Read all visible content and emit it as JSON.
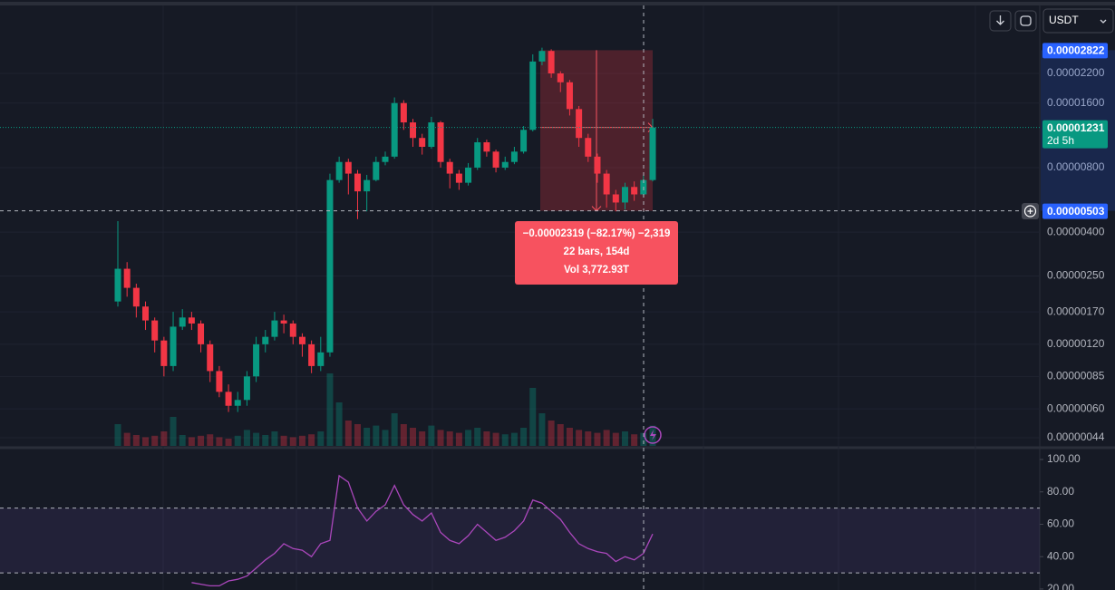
{
  "chart_data": {
    "type": "candlestick",
    "currency": "USDT",
    "log_scale": true,
    "grid": true,
    "up_color": "#089981",
    "down_color": "#f23645",
    "ylim": [
      4.03e-07,
      4.39e-05
    ],
    "yticks": [
      {
        "value": 2.2e-05,
        "label": "0.00002200"
      },
      {
        "value": 1.6e-05,
        "label": "0.00001600"
      },
      {
        "value": 8e-06,
        "label": "0.00000800"
      },
      {
        "value": 4e-06,
        "label": "0.00000400"
      },
      {
        "value": 2.5e-06,
        "label": "0.00000250"
      },
      {
        "value": 1.7e-06,
        "label": "0.00000170"
      },
      {
        "value": 1.2e-06,
        "label": "0.00000120"
      },
      {
        "value": 8.5e-07,
        "label": "0.00000085"
      },
      {
        "value": 6e-07,
        "label": "0.00000060"
      },
      {
        "value": 4.4e-07,
        "label": "0.00000044"
      }
    ],
    "candles": {
      "open": [
        1.9e-06,
        2.7e-06,
        2.2e-06,
        1.8e-06,
        1.55e-06,
        1.25e-06,
        9.5e-07,
        1.45e-06,
        1.6e-06,
        1.5e-06,
        1.2e-06,
        9e-07,
        7.2e-07,
        6.2e-07,
        6.6e-07,
        8.5e-07,
        1.2e-06,
        1.3e-06,
        1.55e-06,
        1.5e-06,
        1.3e-06,
        1.2e-06,
        9.5e-07,
        1.1e-06,
        7e-06,
        8.5e-06,
        7.5e-06,
        6.2e-06,
        7e-06,
        8.5e-06,
        9e-06,
        1.6e-05,
        1.3e-05,
        1.1e-05,
        1e-05,
        1.3e-05,
        8.5e-06,
        7.5e-06,
        6.8e-06,
        8e-06,
        1.05e-05,
        9.5e-06,
        8e-06,
        8.5e-06,
        9.5e-06,
        1.2e-05,
        2.5e-05,
        2.8e-05,
        2.2e-05,
        2e-05,
        1.5e-05,
        1.1e-05,
        9e-06,
        7.5e-06,
        6e-06,
        5.5e-06,
        6.5e-06,
        6e-06,
        7e-06
      ],
      "high": [
        4.5e-06,
        2.9e-06,
        2.3e-06,
        1.9e-06,
        1.6e-06,
        1.3e-06,
        1.7e-06,
        1.75e-06,
        1.7e-06,
        1.55e-06,
        1.25e-06,
        9.5e-07,
        7.8e-07,
        7.2e-07,
        9e-07,
        1.3e-06,
        1.4e-06,
        1.7e-06,
        1.65e-06,
        1.55e-06,
        1.35e-06,
        1.25e-06,
        1.3e-06,
        7.5e-06,
        9e-06,
        8.8e-06,
        7.8e-06,
        7.4e-06,
        9e-06,
        9.5e-06,
        1.7e-05,
        1.65e-05,
        1.35e-05,
        1.15e-05,
        1.38e-05,
        1.32e-05,
        8.8e-06,
        7.8e-06,
        8.4e-06,
        1.1e-05,
        1.08e-05,
        9.7e-06,
        9e-06,
        1e-05,
        1.25e-05,
        2.7e-05,
        2.9e-05,
        2.85e-05,
        2.25e-05,
        2.05e-05,
        1.55e-05,
        1.15e-05,
        9.3e-06,
        7.8e-06,
        6.3e-06,
        6.8e-06,
        6.9e-06,
        7.4e-06,
        1.35e-05
      ],
      "low": [
        1.8e-06,
        2e-06,
        1.6e-06,
        1.4e-06,
        1.1e-06,
        8.5e-07,
        9e-07,
        1.4e-06,
        1.4e-06,
        1.1e-06,
        8e-07,
        6.8e-07,
        5.8e-07,
        5.8e-07,
        6.2e-07,
        8e-07,
        1.1e-06,
        1.25e-06,
        1.35e-06,
        1.2e-06,
        1.05e-06,
        8.8e-07,
        9e-07,
        1.05e-06,
        6.8e-06,
        6e-06,
        4.6e-06,
        5e-06,
        6.9e-06,
        8.2e-06,
        8.8e-06,
        1.2e-05,
        1e-05,
        9.2e-06,
        9.8e-06,
        8e-06,
        6.4e-06,
        6.3e-06,
        6.6e-06,
        7.8e-06,
        9e-06,
        7.6e-06,
        7.8e-06,
        8.3e-06,
        9.3e-06,
        1.18e-05,
        2.4e-05,
        2.1e-05,
        1.8e-05,
        1.4e-05,
        1e-05,
        8.5e-06,
        6.8e-06,
        5.2e-06,
        5e-06,
        5.1e-06,
        5.6e-06,
        5.8e-06,
        6.9e-06
      ],
      "close": [
        2.7e-06,
        2.2e-06,
        1.8e-06,
        1.55e-06,
        1.25e-06,
        9.5e-07,
        1.45e-06,
        1.6e-06,
        1.5e-06,
        1.2e-06,
        9e-07,
        7.2e-07,
        6.2e-07,
        6.6e-07,
        8.5e-07,
        1.2e-06,
        1.3e-06,
        1.55e-06,
        1.5e-06,
        1.3e-06,
        1.2e-06,
        9.5e-07,
        1.1e-06,
        7e-06,
        8.5e-06,
        7.5e-06,
        6.2e-06,
        7e-06,
        8.5e-06,
        9e-06,
        1.6e-05,
        1.3e-05,
        1.1e-05,
        1e-05,
        1.3e-05,
        8.5e-06,
        7.5e-06,
        6.8e-06,
        8e-06,
        1.05e-05,
        9.5e-06,
        8e-06,
        8.5e-06,
        9.5e-06,
        1.2e-05,
        2.5e-05,
        2.8e-05,
        2.2e-05,
        2e-05,
        1.5e-05,
        1.1e-05,
        9e-06,
        7.5e-06,
        6e-06,
        5.5e-06,
        6.5e-06,
        6e-06,
        7e-06,
        1.231e-05
      ]
    },
    "volume": [
      30,
      18,
      15,
      12,
      14,
      20,
      40,
      15,
      12,
      14,
      16,
      12,
      10,
      14,
      22,
      18,
      15,
      20,
      14,
      12,
      14,
      16,
      20,
      100,
      60,
      35,
      30,
      25,
      28,
      22,
      45,
      30,
      25,
      20,
      28,
      22,
      20,
      18,
      22,
      25,
      20,
      18,
      16,
      18,
      25,
      80,
      45,
      35,
      30,
      25,
      22,
      20,
      18,
      22,
      18,
      20,
      16,
      18,
      28
    ],
    "markers": {
      "high": {
        "value": 2.822e-05,
        "label": "0.00002822"
      },
      "last": {
        "value": 1.231e-05,
        "label": "0.00001231",
        "countdown": "2d 5h"
      },
      "crosshair": {
        "value": 5.03e-06,
        "label": "0.00000503"
      }
    },
    "measure": {
      "lines": [
        "−0.00002319 (−82.17%) −2,319",
        "22 bars, 154d",
        "Vol 3,772.93T"
      ]
    },
    "rsi": {
      "color": "#ab47bc",
      "ylim": [
        19.4,
        105.6
      ],
      "yticks": [
        {
          "value": 100,
          "label": "100.00"
        },
        {
          "value": 80,
          "label": "80.00"
        },
        {
          "value": 60,
          "label": "60.00"
        },
        {
          "value": 40,
          "label": "40.00"
        },
        {
          "value": 20,
          "label": "20.00"
        }
      ],
      "bands": [
        30,
        70
      ],
      "values": [
        null,
        null,
        null,
        null,
        null,
        null,
        null,
        null,
        24,
        23,
        22,
        22,
        25,
        26,
        28,
        33,
        38,
        42,
        48,
        45,
        44,
        40,
        48,
        50,
        90,
        86,
        70,
        62,
        68,
        72,
        84,
        72,
        66,
        62,
        67,
        55,
        50,
        48,
        53,
        60,
        55,
        50,
        52,
        56,
        62,
        75,
        73,
        68,
        63,
        55,
        48,
        45,
        43,
        42,
        37,
        40,
        38,
        42,
        54
      ]
    }
  }
}
